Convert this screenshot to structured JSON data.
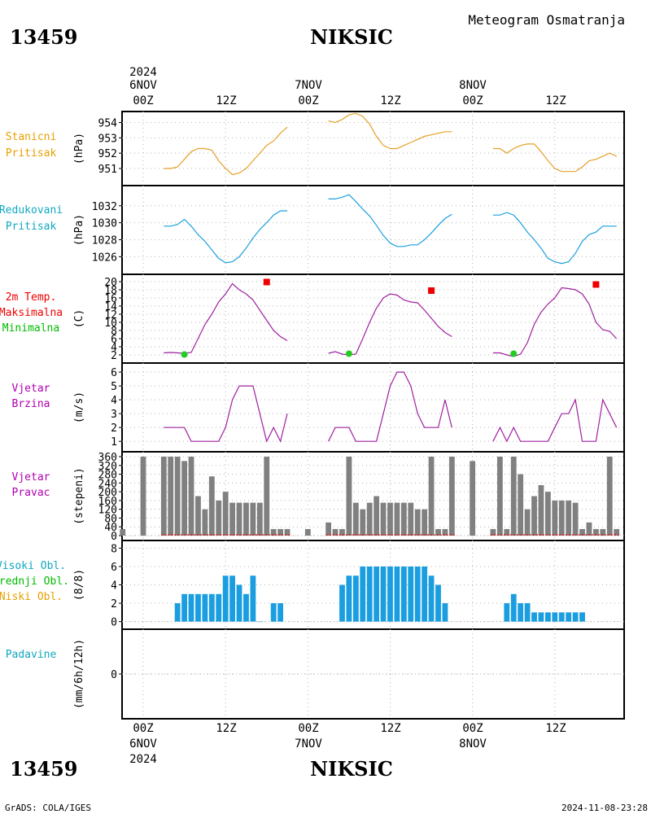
{
  "header": {
    "station_id": "13459",
    "station_name": "NIKSIC",
    "product": "Meteogram Osmatranja"
  },
  "footer": {
    "credit": "GrADS: COLA/IGES",
    "timestamp": "2024-11-08-23:28"
  },
  "time_axis": {
    "year": "2024",
    "date_labels": [
      "6NOV",
      "7NOV",
      "8NOV"
    ],
    "hour_labels": [
      "00Z",
      "12Z",
      "00Z",
      "12Z",
      "00Z",
      "12Z"
    ]
  },
  "colors": {
    "pressure": "#e6a028",
    "reduced_pressure": "#1aa0dc",
    "temperature": "#a020a0",
    "max_temp": "#ee0000",
    "min_temp": "#22cc22",
    "wind": "#a020a0",
    "bars": "#808080",
    "clouds": "#1a9ee0",
    "grid": "#b4b4b4",
    "label_purple": "#b000b0",
    "label_cyan": "#10a8c0",
    "label_orange": "#e8a000",
    "label_red": "#ee0000",
    "label_green": "#00bb00"
  },
  "chart_data": [
    {
      "type": "line",
      "label": [
        "Stanicni",
        "Pritisak"
      ],
      "ylabel": "(hPa)",
      "ylim": [
        950.2,
        954.4
      ],
      "yticks": [
        951,
        952,
        953,
        954
      ],
      "x_unit": "hours since 2024-11-06 00Z",
      "series": [
        {
          "segments": [
            {
              "x": [
                3,
                4,
                5,
                6,
                7,
                8,
                9,
                10,
                11,
                12,
                13,
                14,
                15,
                16,
                17,
                18,
                19,
                20,
                21
              ],
              "y": [
                951.0,
                951.0,
                951.1,
                951.6,
                952.1,
                952.3,
                952.3,
                952.2,
                951.5,
                951.0,
                950.6,
                950.7,
                951.0,
                951.5,
                952.0,
                952.5,
                952.8,
                953.3,
                953.7
              ]
            },
            {
              "x": [
                27,
                28,
                29,
                30,
                31,
                32,
                33,
                34,
                35,
                36,
                37,
                38,
                39,
                40,
                41,
                42,
                43,
                44,
                45
              ],
              "y": [
                954.1,
                954.0,
                954.2,
                954.5,
                954.6,
                954.4,
                953.9,
                953.1,
                952.5,
                952.3,
                952.3,
                952.5,
                952.7,
                952.9,
                953.1,
                953.2,
                953.3,
                953.4,
                953.4
              ]
            },
            {
              "x": [
                51,
                52,
                53,
                54,
                55,
                56,
                57,
                58,
                59,
                60,
                61,
                62,
                63,
                64,
                65,
                66,
                67,
                68,
                69
              ],
              "y": [
                952.3,
                952.3,
                952.0,
                952.3,
                952.5,
                952.6,
                952.6,
                952.1,
                951.5,
                951.0,
                950.8,
                950.8,
                950.8,
                951.1,
                951.5,
                951.6,
                951.8,
                952.0,
                951.8
              ]
            }
          ]
        }
      ]
    },
    {
      "type": "line",
      "label": [
        "Redukovani",
        "Pritisak"
      ],
      "ylabel": "(hPa)",
      "ylim": [
        1024.5,
        1033.8
      ],
      "yticks": [
        1026,
        1028,
        1030,
        1032
      ],
      "series": [
        {
          "segments": [
            {
              "x": [
                3,
                4,
                5,
                6,
                7,
                8,
                9,
                10,
                11,
                12,
                13,
                14,
                15,
                16,
                17,
                18,
                19,
                20,
                21
              ],
              "y": [
                1029.6,
                1029.6,
                1029.8,
                1030.4,
                1029.6,
                1028.6,
                1027.8,
                1026.8,
                1025.8,
                1025.3,
                1025.4,
                1026.0,
                1027.0,
                1028.2,
                1029.2,
                1030.0,
                1030.9,
                1031.4,
                1031.4
              ]
            },
            {
              "x": [
                27,
                28,
                29,
                30,
                31,
                32,
                33,
                34,
                35,
                36,
                37,
                38,
                39,
                40,
                41,
                42,
                43,
                44,
                45
              ],
              "y": [
                1032.8,
                1032.8,
                1033.0,
                1033.3,
                1032.5,
                1031.6,
                1030.8,
                1029.7,
                1028.5,
                1027.6,
                1027.2,
                1027.2,
                1027.4,
                1027.4,
                1028.0,
                1028.8,
                1029.7,
                1030.5,
                1031.0
              ]
            },
            {
              "x": [
                51,
                52,
                53,
                54,
                55,
                56,
                57,
                58,
                59,
                60,
                61,
                62,
                63,
                64,
                65,
                66,
                67,
                68,
                69
              ],
              "y": [
                1030.9,
                1030.9,
                1031.2,
                1030.9,
                1030.0,
                1028.9,
                1028.0,
                1027.0,
                1025.8,
                1025.4,
                1025.2,
                1025.4,
                1026.4,
                1027.8,
                1028.6,
                1028.9,
                1029.6,
                1029.6,
                1029.6
              ]
            }
          ]
        }
      ]
    },
    {
      "type": "line",
      "label": [
        "2m Temp.",
        "Maksimalna",
        "Minimalna"
      ],
      "ylabel": "(C)",
      "ylim": [
        1.2,
        20.6
      ],
      "yticks": [
        2,
        4,
        6,
        8,
        10,
        12,
        14,
        16,
        18,
        20
      ],
      "series": [
        {
          "name": "2m Temp.",
          "segments": [
            {
              "x": [
                3,
                4,
                5,
                6,
                7,
                8,
                9,
                10,
                11,
                12,
                13,
                14,
                15,
                16,
                17,
                18,
                19,
                20,
                21
              ],
              "y": [
                2.5,
                2.6,
                2.5,
                2.4,
                2.6,
                6.0,
                9.5,
                12.0,
                15.0,
                17.0,
                19.5,
                18.0,
                17.0,
                15.5,
                13.0,
                10.5,
                8.0,
                6.5,
                5.5
              ]
            },
            {
              "x": [
                27,
                28,
                29,
                30,
                31,
                32,
                33,
                34,
                35,
                36,
                37,
                38,
                39,
                40,
                41,
                42,
                43,
                44,
                45
              ],
              "y": [
                2.4,
                2.8,
                2.2,
                2.0,
                2.2,
                6.0,
                10.0,
                13.5,
                16.0,
                17.0,
                16.7,
                15.5,
                15.0,
                14.8,
                13.0,
                11.0,
                9.0,
                7.5,
                6.5
              ]
            },
            {
              "x": [
                51,
                52,
                53,
                54,
                55,
                56,
                57,
                58,
                59,
                60,
                61,
                62,
                63,
                64,
                65,
                66,
                67,
                68,
                69
              ],
              "y": [
                2.5,
                2.5,
                2.0,
                1.6,
                2.2,
                5.0,
                9.5,
                12.5,
                14.5,
                16.0,
                18.5,
                18.3,
                18.0,
                17.0,
                14.5,
                10.0,
                8.2,
                7.8,
                6.0
              ]
            }
          ]
        },
        {
          "name": "Maksimalna",
          "points": [
            {
              "x": 18,
              "y": 19.9
            },
            {
              "x": 42,
              "y": 17.8
            },
            {
              "x": 66,
              "y": 19.3
            }
          ]
        },
        {
          "name": "Minimalna",
          "points": [
            {
              "x": 6,
              "y": 2.1
            },
            {
              "x": 30,
              "y": 2.3
            },
            {
              "x": 54,
              "y": 2.3
            }
          ]
        }
      ]
    },
    {
      "type": "line",
      "label": [
        "Vjetar",
        "Brzina"
      ],
      "ylabel": "(m/s)",
      "ylim": [
        0.6,
        6.3
      ],
      "yticks": [
        1,
        2,
        3,
        4,
        5,
        6
      ],
      "series": [
        {
          "segments": [
            {
              "x": [
                3,
                4,
                5,
                6,
                7,
                8,
                9,
                10,
                11,
                12,
                13,
                14,
                15,
                16,
                17,
                18,
                19,
                20,
                21
              ],
              "y": [
                2,
                2,
                2,
                2,
                1,
                1,
                1,
                1,
                1,
                2,
                4,
                5,
                5,
                5,
                3,
                1,
                2,
                1,
                3
              ]
            },
            {
              "x": [
                27,
                28,
                29,
                30,
                31,
                32,
                33,
                34,
                35,
                36,
                37,
                38,
                39,
                40,
                41,
                42,
                43,
                44,
                45
              ],
              "y": [
                1,
                2,
                2,
                2,
                1,
                1,
                1,
                1,
                3,
                5,
                6,
                6,
                5,
                3,
                2,
                2,
                2,
                4,
                2
              ]
            },
            {
              "x": [
                51,
                52,
                53,
                54,
                55,
                56,
                57,
                58,
                59,
                60,
                61,
                62,
                63,
                64,
                65,
                66,
                67,
                68,
                69
              ],
              "y": [
                1,
                2,
                1,
                2,
                1,
                1,
                1,
                1,
                1,
                2,
                3,
                3,
                4,
                1,
                1,
                1,
                4,
                3,
                2
              ]
            }
          ]
        }
      ]
    },
    {
      "type": "bar",
      "label": [
        "Vjetar",
        "Pravac"
      ],
      "ylabel": "(stepeni)",
      "ylim": [
        0,
        360
      ],
      "yticks": [
        0,
        40,
        80,
        120,
        160,
        200,
        240,
        280,
        320,
        360
      ],
      "x": [
        -3,
        0,
        3,
        4,
        5,
        6,
        7,
        8,
        9,
        10,
        11,
        12,
        13,
        14,
        15,
        16,
        17,
        18,
        19,
        20,
        21,
        24,
        27,
        28,
        29,
        30,
        31,
        32,
        33,
        34,
        35,
        36,
        37,
        38,
        39,
        40,
        41,
        42,
        43,
        44,
        45,
        48,
        51,
        52,
        53,
        54,
        55,
        56,
        57,
        58,
        59,
        60,
        61,
        62,
        63,
        64,
        65,
        66,
        67,
        68,
        69
      ],
      "values": [
        30,
        360,
        360,
        360,
        360,
        340,
        360,
        180,
        120,
        270,
        160,
        200,
        150,
        150,
        150,
        150,
        150,
        360,
        30,
        30,
        30,
        30,
        60,
        30,
        30,
        360,
        150,
        120,
        150,
        180,
        150,
        150,
        150,
        150,
        150,
        120,
        120,
        360,
        30,
        30,
        360,
        340,
        30,
        360,
        30,
        360,
        280,
        120,
        180,
        230,
        200,
        160,
        160,
        160,
        150,
        30,
        60,
        30,
        30,
        360,
        30
      ]
    },
    {
      "type": "bar",
      "label": [
        "Visoki Obl.",
        "Srednji Obl.",
        "Niski Obl."
      ],
      "ylabel": "(8/8)",
      "ylim": [
        -0.3,
        8.3
      ],
      "yticks": [
        0,
        2,
        4,
        6,
        8
      ],
      "x": [
        5,
        6,
        7,
        8,
        9,
        10,
        11,
        12,
        13,
        14,
        15,
        16,
        17,
        19,
        20,
        29,
        30,
        31,
        32,
        33,
        34,
        35,
        36,
        37,
        38,
        39,
        40,
        41,
        42,
        43,
        44,
        53,
        54,
        55,
        56,
        57,
        58,
        59,
        60,
        61,
        62,
        63,
        64
      ],
      "values": [
        2,
        3,
        3,
        3,
        3,
        3,
        3,
        5,
        5,
        4,
        3,
        5,
        0,
        2,
        2,
        4,
        5,
        5,
        6,
        6,
        6,
        6,
        6,
        6,
        6,
        6,
        6,
        6,
        5,
        4,
        2,
        2,
        3,
        2,
        2,
        1,
        1,
        1,
        1,
        1,
        1,
        1,
        1
      ]
    },
    {
      "type": "bar",
      "label": [
        "Padavine"
      ],
      "ylabel": "(mm/6h/12h)",
      "ylim": [
        -0.5,
        0.5
      ],
      "yticks": [
        0
      ],
      "x": [],
      "values": []
    }
  ]
}
